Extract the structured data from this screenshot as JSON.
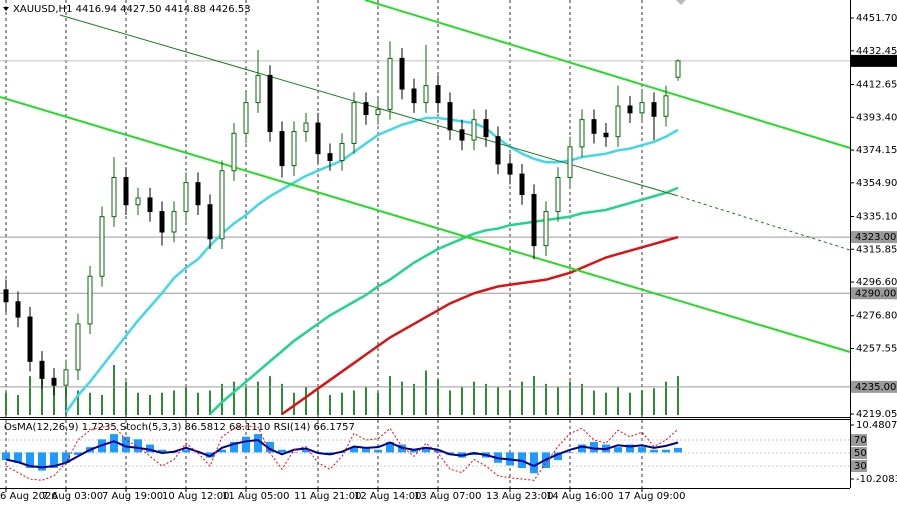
{
  "chart_data": [
    {
      "type": "candlestick",
      "title": "XAUUSD,H1 4416.94 4427.50 4414.88 4426.53",
      "categories": [
        "6 Aug 2026",
        null,
        null,
        null,
        null,
        "7 Aug 03:00",
        null,
        null,
        null,
        null,
        "7 Aug 19:00",
        null,
        null,
        null,
        null,
        "10 Aug 12:00",
        null,
        null,
        null,
        null,
        "11 Aug 05:00",
        null,
        null,
        null,
        null,
        null,
        "11 Aug 21:00",
        null,
        null,
        null,
        null,
        "12 Aug 14:00",
        null,
        null,
        null,
        null,
        "13 Aug 07:00",
        null,
        null,
        null,
        null,
        null,
        "13 Aug 23:00",
        null,
        null,
        null,
        null,
        "14 Aug 16:00",
        null,
        null,
        null,
        null,
        null,
        "17 Aug 09:00",
        null,
        null,
        null
      ],
      "open": [
        4292,
        4285,
        4276,
        4250,
        4240,
        4236,
        4245,
        4272,
        4300,
        4335,
        4358,
        4342,
        4346,
        4338,
        4326,
        4338,
        4355,
        4342,
        4322,
        4362,
        4384,
        4402,
        4418,
        4385,
        4365,
        4385,
        4390,
        4372,
        4368,
        4378,
        4402,
        4395,
        4398,
        4428,
        4410,
        4402,
        4412,
        4402,
        4386,
        4380,
        4392,
        4382,
        4366,
        4360,
        4348,
        4318,
        4338,
        4358,
        4376,
        4392,
        4384,
        4382,
        4400,
        4396,
        4402,
        4394,
        4416.94
      ],
      "high": [
        4298,
        4291,
        4282,
        4256,
        4246,
        4251,
        4278,
        4306,
        4341,
        4370,
        4364,
        4352,
        4352,
        4344,
        4344,
        4361,
        4361,
        4348,
        4368,
        4390,
        4408,
        4433,
        4424,
        4391,
        4391,
        4396,
        4396,
        4378,
        4384,
        4408,
        4408,
        4404,
        4438,
        4434,
        4416,
        4436,
        4418,
        4408,
        4392,
        4398,
        4398,
        4388,
        4372,
        4366,
        4354,
        4344,
        4364,
        4382,
        4398,
        4398,
        4390,
        4412,
        4406,
        4410,
        4408,
        4412,
        4427.5
      ],
      "low": [
        4279,
        4270,
        4244,
        4234,
        4230,
        4230,
        4239,
        4266,
        4294,
        4329,
        4336,
        4336,
        4332,
        4318,
        4320,
        4332,
        4336,
        4316,
        4316,
        4356,
        4378,
        4396,
        4379,
        4358,
        4359,
        4379,
        4366,
        4362,
        4362,
        4372,
        4389,
        4389,
        4392,
        4404,
        4396,
        4396,
        4396,
        4380,
        4374,
        4374,
        4376,
        4360,
        4354,
        4342,
        4310,
        4312,
        4332,
        4352,
        4370,
        4378,
        4376,
        4376,
        4390,
        4390,
        4380,
        4388,
        4414.88
      ],
      "close": [
        4285,
        4276,
        4250,
        4240,
        4236,
        4245,
        4272,
        4300,
        4335,
        4358,
        4342,
        4346,
        4338,
        4326,
        4338,
        4355,
        4342,
        4322,
        4362,
        4384,
        4402,
        4418,
        4385,
        4365,
        4385,
        4390,
        4372,
        4368,
        4378,
        4402,
        4395,
        4398,
        4428,
        4410,
        4402,
        4412,
        4402,
        4386,
        4380,
        4392,
        4382,
        4366,
        4360,
        4348,
        4318,
        4338,
        4358,
        4376,
        4392,
        4384,
        4382,
        4400,
        4396,
        4402,
        4394,
        4406,
        4426.53
      ],
      "up_color": "#0b6b0b",
      "down_color": "#000000",
      "volume": [
        20,
        18,
        35,
        40,
        30,
        25,
        22,
        20,
        18,
        45,
        30,
        20,
        18,
        20,
        22,
        25,
        20,
        22,
        28,
        30,
        25,
        30,
        35,
        28,
        20,
        25,
        22,
        18,
        20,
        22,
        25,
        20,
        35,
        30,
        28,
        40,
        32,
        22,
        25,
        30,
        28,
        25,
        22,
        30,
        35,
        28,
        25,
        30,
        28,
        22,
        20,
        25,
        20,
        22,
        24,
        30,
        35
      ],
      "volume_color": "#2e8b2e",
      "series": [
        {
          "color": "#3fd9e8",
          "values": [
            null,
            null,
            null,
            null,
            null,
            4220,
            4230,
            4238,
            4247,
            4256,
            4265,
            4274,
            4282,
            4290,
            4299,
            4305,
            4310,
            4318,
            4325,
            4331,
            4336,
            4342,
            4347,
            4351,
            4355,
            4359,
            4362,
            4365,
            4368,
            4373,
            4378,
            4383,
            4386,
            4389,
            4391,
            4393,
            4393,
            4392,
            4391,
            4390,
            4387,
            4381,
            4376,
            4372,
            4369,
            4367,
            4367,
            4368,
            4370,
            4371,
            4372,
            4374,
            4375,
            4377,
            4379,
            4382,
            4386
          ]
        },
        {
          "color": "#1ed68a",
          "values": [
            null,
            null,
            null,
            null,
            null,
            null,
            null,
            null,
            null,
            null,
            null,
            null,
            null,
            null,
            null,
            null,
            null,
            4219,
            4226,
            4232,
            4238,
            4244,
            4250,
            4256,
            4262,
            4267,
            4272,
            4277,
            4281,
            4285,
            4289,
            4294,
            4298,
            4303,
            4308,
            4312,
            4316,
            4319,
            4322,
            4325,
            4327,
            4328,
            4330,
            4331,
            4332,
            4333,
            4334,
            4335,
            4337,
            4338,
            4339,
            4341,
            4343,
            4345,
            4347,
            4349,
            4352
          ]
        },
        {
          "color": "#dd1111",
          "values": [
            null,
            null,
            null,
            null,
            null,
            null,
            null,
            null,
            null,
            null,
            null,
            null,
            null,
            null,
            null,
            null,
            null,
            null,
            null,
            null,
            null,
            null,
            null,
            4219,
            4224,
            4229,
            4234,
            4239,
            4244,
            4249,
            4254,
            4259,
            4264,
            4268,
            4272,
            4276,
            4280,
            4284,
            4287,
            4290,
            4292,
            4294,
            4295,
            4296,
            4297,
            4298,
            4300,
            4302,
            4305,
            4308,
            4311,
            4313,
            4315,
            4317,
            4319,
            4321,
            4323
          ]
        }
      ],
      "ylim": [
        4217.3,
        4462.3
      ],
      "yticks": [
        {
          "value": 4451.7,
          "label": "4451.70"
        },
        4432.45,
        4412.65,
        {
          "value": 4393.4,
          "label": "4393.40"
        },
        4374.15,
        {
          "value": 4354.9,
          "label": "4354.90"
        },
        {
          "value": 4335.1,
          "label": "4335.10"
        },
        4315.85,
        {
          "value": 4296.6,
          "label": "4296.60"
        },
        {
          "value": 4276.8,
          "label": "4276.80"
        },
        4257.55,
        4219.05
      ],
      "levels": [
        {
          "value": 4323,
          "label": "4323.00"
        },
        {
          "value": 4290,
          "label": "4290.00"
        },
        {
          "value": 4235,
          "label": "4235.00"
        }
      ],
      "grid": true
    },
    {
      "type": "oscillator",
      "title": "OsMA(12,26,9) 1.7235 Stoch(5,3,3) 86.5812 68.1110 RSI(14) 66.1757",
      "series": [
        {
          "color": "#1e9bff",
          "style": "histogram",
          "values": [
            -3,
            -4,
            -6,
            -7,
            -6,
            -4,
            -1,
            2,
            5,
            7,
            6,
            5,
            3,
            1,
            0,
            1,
            0,
            -2,
            1,
            4,
            6,
            7,
            4,
            1,
            0,
            1,
            0,
            -1,
            0,
            2,
            2,
            1,
            4,
            3,
            1,
            2,
            1,
            -1,
            -2,
            -1,
            -2,
            -4,
            -5,
            -6,
            -8,
            -6,
            -3,
            0,
            3,
            4,
            3,
            2,
            3,
            2,
            1,
            1,
            1.7235
          ]
        },
        {
          "color": "#00008b",
          "axis": "y2",
          "values": [
            40,
            36,
            30,
            28,
            30,
            35,
            45,
            55,
            62,
            68,
            60,
            58,
            55,
            50,
            52,
            58,
            52,
            45,
            58,
            64,
            68,
            70,
            56,
            48,
            55,
            57,
            50,
            48,
            52,
            60,
            58,
            59,
            66,
            58,
            55,
            58,
            55,
            48,
            46,
            50,
            47,
            42,
            40,
            38,
            30,
            40,
            48,
            55,
            60,
            57,
            56,
            62,
            60,
            62,
            58,
            61,
            66.1757
          ]
        },
        {
          "color": "#ff0000",
          "axis": "y2",
          "style": "dotted",
          "values": [
            30,
            20,
            10,
            8,
            15,
            35,
            70,
            85,
            90,
            92,
            70,
            60,
            45,
            30,
            40,
            65,
            50,
            30,
            75,
            88,
            92,
            90,
            50,
            25,
            55,
            60,
            35,
            25,
            45,
            80,
            70,
            72,
            88,
            60,
            45,
            65,
            50,
            25,
            20,
            40,
            30,
            15,
            12,
            10,
            8,
            35,
            60,
            80,
            88,
            70,
            65,
            85,
            75,
            82,
            60,
            70,
            86.5812
          ]
        }
      ],
      "ylim": [
        -13.66,
        12.4
      ],
      "yticks": [
        10.4807,
        -10.2083
      ],
      "y2lim": [
        -3.8,
        100.8
      ],
      "y2ticks": [
        70,
        50,
        30
      ]
    }
  ]
}
